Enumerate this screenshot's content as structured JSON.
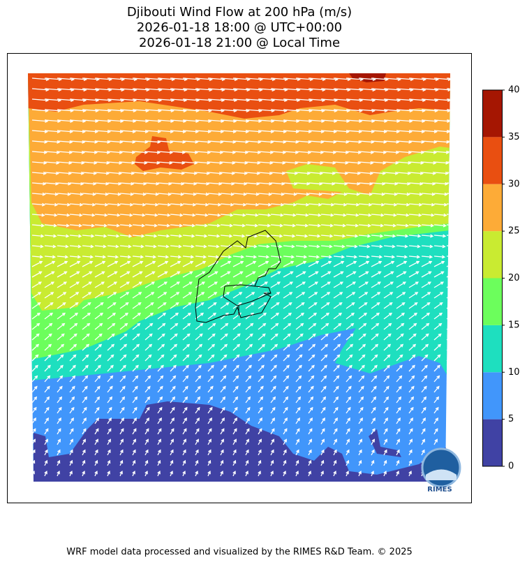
{
  "title": [
    "Djibouti Wind Flow at 200 hPa (m/s)",
    "2026-01-18 18:00 @ UTC+00:00",
    "2026-01-18 21:00 @ Local Time"
  ],
  "colorbar": {
    "ticks": [
      0,
      5,
      10,
      15,
      20,
      25,
      30,
      35,
      40
    ],
    "colors": [
      "#4042a4",
      "#4196fb",
      "#1edfbf",
      "#6cfe5c",
      "#c9eb31",
      "#fdab37",
      "#e94f11",
      "#a51602"
    ]
  },
  "logo": "RIMES",
  "footer": "WRF model data processed and visualized by the RIMES R&D Team. © 2025"
}
